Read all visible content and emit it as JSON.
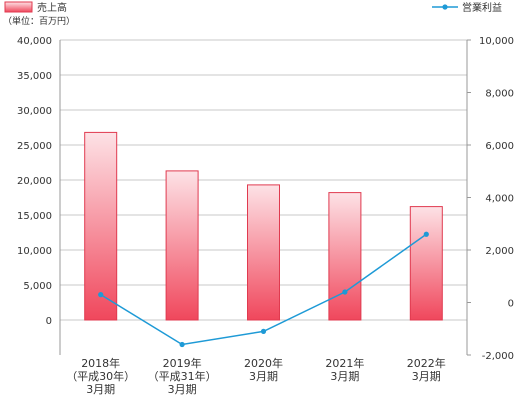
{
  "chart_data": {
    "type": "bar",
    "unit_note": "（単位：百万円）",
    "categories": [
      [
        "2018年",
        "（平成30年）",
        "3月期"
      ],
      [
        "2019年",
        "（平成31年）",
        "3月期"
      ],
      [
        "2020年",
        "3月期"
      ],
      [
        "2021年",
        "3月期"
      ],
      [
        "2022年",
        "3月期"
      ]
    ],
    "series": [
      {
        "name": "売上高",
        "type": "bar",
        "axis": "left",
        "values": [
          26800,
          21300,
          19300,
          18200,
          16200
        ]
      },
      {
        "name": "営業利益",
        "type": "line",
        "axis": "right",
        "values": [
          300,
          -1600,
          -1100,
          400,
          2600
        ]
      }
    ],
    "y_left": {
      "min": 0,
      "max": 40000,
      "ticks": [
        "40,000",
        "35,000",
        "30,000",
        "25,000",
        "20,000",
        "15,000",
        "10,000",
        "5,000",
        "0"
      ]
    },
    "y_right": {
      "min": -2000,
      "max": 10000,
      "ticks": [
        "10,000",
        "8,000",
        "6,000",
        "4,000",
        "2,000",
        "0",
        "-2,000"
      ]
    },
    "legend_position": "top",
    "colors": {
      "bar_top": "#fde2e6",
      "bar_bottom": "#f0475c",
      "bar_border": "#e03a4f",
      "line": "#1e9ad6",
      "grid": "#c8c8c8",
      "axis": "#999999"
    }
  }
}
